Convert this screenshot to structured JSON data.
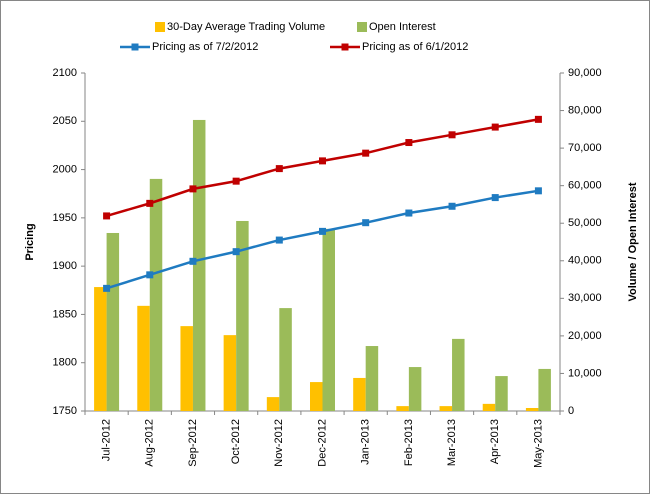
{
  "chart_data": {
    "type": "combo",
    "categories": [
      "Jul-2012",
      "Aug-2012",
      "Sep-2012",
      "Oct-2012",
      "Nov-2012",
      "Dec-2012",
      "Jan-2013",
      "Feb-2013",
      "Mar-2013",
      "Apr-2013",
      "May-2013"
    ],
    "series": [
      {
        "name": "30-Day Average Trading Volume",
        "type": "bar",
        "axis": "y2",
        "color": "#FFC000",
        "values": [
          33000,
          28000,
          22600,
          20200,
          3700,
          7700,
          8800,
          1300,
          1300,
          1900,
          800
        ]
      },
      {
        "name": "Open Interest",
        "type": "bar",
        "axis": "y2",
        "color": "#9BBB59",
        "values": [
          47400,
          61800,
          77500,
          50600,
          27400,
          48500,
          17300,
          11700,
          19200,
          9300,
          11200
        ]
      },
      {
        "name": "Pricing as of 7/2/2012",
        "type": "line",
        "axis": "y",
        "color": "#1F7BC1",
        "values": [
          1877,
          1891,
          1905,
          1915,
          1927,
          1936,
          1945,
          1955,
          1962,
          1971,
          1978
        ]
      },
      {
        "name": "Pricing as of 6/1/2012",
        "type": "line",
        "axis": "y",
        "color": "#C00000",
        "values": [
          1952,
          1965,
          1980,
          1988,
          2001,
          2009,
          2017,
          2028,
          2036,
          2044,
          2052
        ]
      }
    ],
    "y_label": "Pricing",
    "y2_label": "Volume / Open Interest",
    "ylim": [
      1750,
      2100
    ],
    "yticks": [
      1750,
      1800,
      1850,
      1900,
      1950,
      2000,
      2050,
      2100
    ],
    "y2lim": [
      0,
      90000
    ],
    "y2ticks": [
      0,
      {
        "value": 10000,
        "label": "10,000"
      },
      {
        "value": 20000,
        "label": "20,000"
      },
      {
        "value": 30000,
        "label": "30,000"
      },
      {
        "value": 40000,
        "label": "40,000"
      },
      {
        "value": 50000,
        "label": "50,000"
      },
      {
        "value": 60000,
        "label": "60,000"
      },
      {
        "value": 70000,
        "label": "70,000"
      },
      {
        "value": 80000,
        "label": "80,000"
      },
      {
        "value": 90000,
        "label": "90,000"
      }
    ],
    "grid": false
  }
}
